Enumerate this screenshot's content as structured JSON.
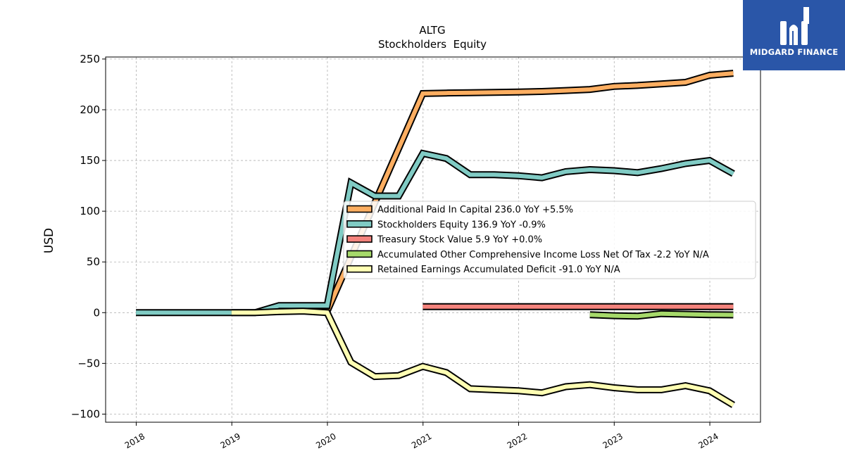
{
  "chart_data": {
    "type": "line",
    "title": "ALTG",
    "subtitle": "Stockholders  Equity",
    "ylabel": "USD",
    "xlabel": "",
    "ylim": [
      -108,
      252
    ],
    "xlim": [
      2017.68,
      2024.53
    ],
    "yticks": [
      250,
      200,
      150,
      100,
      50,
      0,
      -50,
      -100
    ],
    "ytick_labels": [
      "250",
      "200",
      "150",
      "100",
      "50",
      "0",
      "−50",
      "−100"
    ],
    "xticks": [
      2018,
      2019,
      2020,
      2021,
      2022,
      2023,
      2024
    ],
    "xtick_labels": [
      "2018",
      "2019",
      "2020",
      "2021",
      "2022",
      "2023",
      "2024"
    ],
    "grid": true,
    "legend_position": "center-right",
    "series": [
      {
        "name": "Additional Paid In Capital",
        "legend": "Additional Paid In Capital  236.0 YoY +5.5%",
        "color": "#fdae61",
        "x": [
          "2020-01-01",
          "2020-12-31",
          "2021-03-31",
          "2021-06-30",
          "2021-09-30",
          "2021-12-31",
          "2022-03-31",
          "2022-06-30",
          "2022-09-30",
          "2022-12-31",
          "2023-03-31",
          "2023-06-30",
          "2023-09-30",
          "2023-12-31",
          "2024-03-31"
        ],
        "y": [
          2,
          216,
          216.5,
          216.8,
          217.2,
          217.5,
          218,
          219,
          220,
          223,
          224,
          225.5,
          227,
          234,
          236
        ]
      },
      {
        "name": "Stockholders Equity",
        "legend": "Stockholders Equity  136.9 YoY -0.9%",
        "color": "#80cbc4",
        "x": [
          "2017-12-31",
          "2019-03-31",
          "2019-06-30",
          "2019-09-30",
          "2019-12-31",
          "2020-03-31",
          "2020-06-30",
          "2020-09-30",
          "2020-12-31",
          "2021-03-31",
          "2021-06-30",
          "2021-09-30",
          "2021-12-31",
          "2022-03-31",
          "2022-06-30",
          "2022-09-30",
          "2022-12-31",
          "2023-03-31",
          "2023-06-30",
          "2023-09-30",
          "2023-12-31",
          "2024-03-31"
        ],
        "y": [
          0,
          0,
          7,
          7,
          7,
          128,
          115,
          115,
          157,
          152,
          136,
          136,
          135,
          133,
          139,
          141,
          140,
          138,
          142,
          147,
          150,
          137
        ]
      },
      {
        "name": "Treasury Stock Value",
        "legend": "Treasury Stock Value  5.9 YoY +0.0%",
        "color": "#f4837d",
        "x": [
          "2020-12-31",
          "2024-03-31"
        ],
        "y": [
          5.9,
          5.9
        ]
      },
      {
        "name": "Accumulated Other Comprehensive Income Loss Net Of Tax",
        "legend": "Accumulated Other Comprehensive Income Loss Net Of Tax  -2.2 YoY N/A",
        "color": "#a6d96a",
        "x": [
          "2022-09-30",
          "2022-12-31",
          "2023-03-31",
          "2023-06-30",
          "2023-09-30",
          "2023-12-31",
          "2024-03-31"
        ],
        "y": [
          -2,
          -3,
          -3.5,
          -1,
          -1.5,
          -2,
          -2.2
        ]
      },
      {
        "name": "Retained Earnings Accumulated Deficit",
        "legend": "Retained Earnings Accumulated Deficit  -91.0 YoY N/A",
        "color": "#ffffb3",
        "x": [
          "2018-12-31",
          "2019-03-31",
          "2019-06-30",
          "2019-09-30",
          "2019-12-31",
          "2020-03-31",
          "2020-06-30",
          "2020-09-30",
          "2020-12-31",
          "2021-03-31",
          "2021-06-30",
          "2021-09-30",
          "2021-12-31",
          "2022-03-31",
          "2022-06-30",
          "2022-09-30",
          "2022-12-31",
          "2023-03-31",
          "2023-06-30",
          "2023-09-30",
          "2023-12-31",
          "2024-03-31"
        ],
        "y": [
          0,
          0,
          1,
          1.5,
          0,
          -49,
          -63,
          -62,
          -53,
          -59,
          -75,
          -76,
          -77,
          -79,
          -73,
          -71,
          -74,
          -76,
          -76,
          -72,
          -77,
          -91
        ]
      }
    ]
  },
  "logo": {
    "text": "MIDGARD FINANCE",
    "background": "#2a56a8"
  }
}
